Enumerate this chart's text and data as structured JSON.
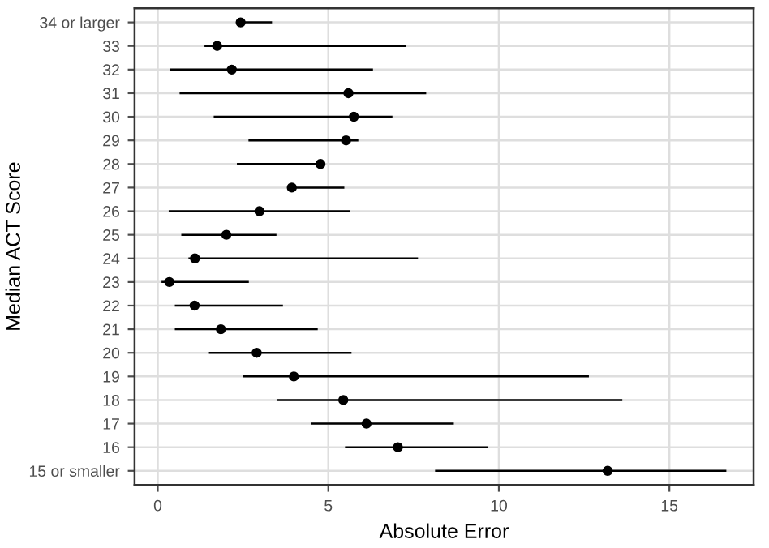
{
  "chart_data": {
    "type": "scatter",
    "orientation": "horizontal",
    "xlabel": "Absolute Error",
    "ylabel": "Median ACT Score",
    "categories": [
      "34 or larger",
      "33",
      "32",
      "31",
      "30",
      "29",
      "28",
      "27",
      "26",
      "25",
      "24",
      "23",
      "22",
      "21",
      "20",
      "19",
      "18",
      "17",
      "16",
      "15 or smaller"
    ],
    "values": [
      2.43,
      1.74,
      2.17,
      5.59,
      5.75,
      5.52,
      4.77,
      3.93,
      2.98,
      2.01,
      1.09,
      0.34,
      1.08,
      1.85,
      2.9,
      3.99,
      5.44,
      6.12,
      7.04,
      13.19
    ],
    "errors": [
      [
        2.35,
        3.35
      ],
      [
        1.37,
        7.29
      ],
      [
        0.35,
        6.31
      ],
      [
        0.64,
        7.87
      ],
      [
        1.64,
        6.88
      ],
      [
        2.66,
        5.88
      ],
      [
        2.32,
        4.86
      ],
      [
        3.85,
        5.47
      ],
      [
        0.32,
        5.64
      ],
      [
        0.69,
        3.48
      ],
      [
        0.9,
        7.63
      ],
      [
        0.11,
        2.67
      ],
      [
        0.5,
        3.67
      ],
      [
        0.5,
        4.69
      ],
      [
        1.5,
        5.68
      ],
      [
        2.5,
        12.64
      ],
      [
        3.49,
        13.62
      ],
      [
        4.49,
        8.68
      ],
      [
        5.49,
        9.69
      ],
      [
        8.13,
        16.67
      ]
    ],
    "color": "#000000",
    "marker": "circle",
    "xlim": [
      -0.68,
      17.47
    ],
    "xticks": [
      0,
      5,
      10,
      15
    ],
    "grid": true
  }
}
